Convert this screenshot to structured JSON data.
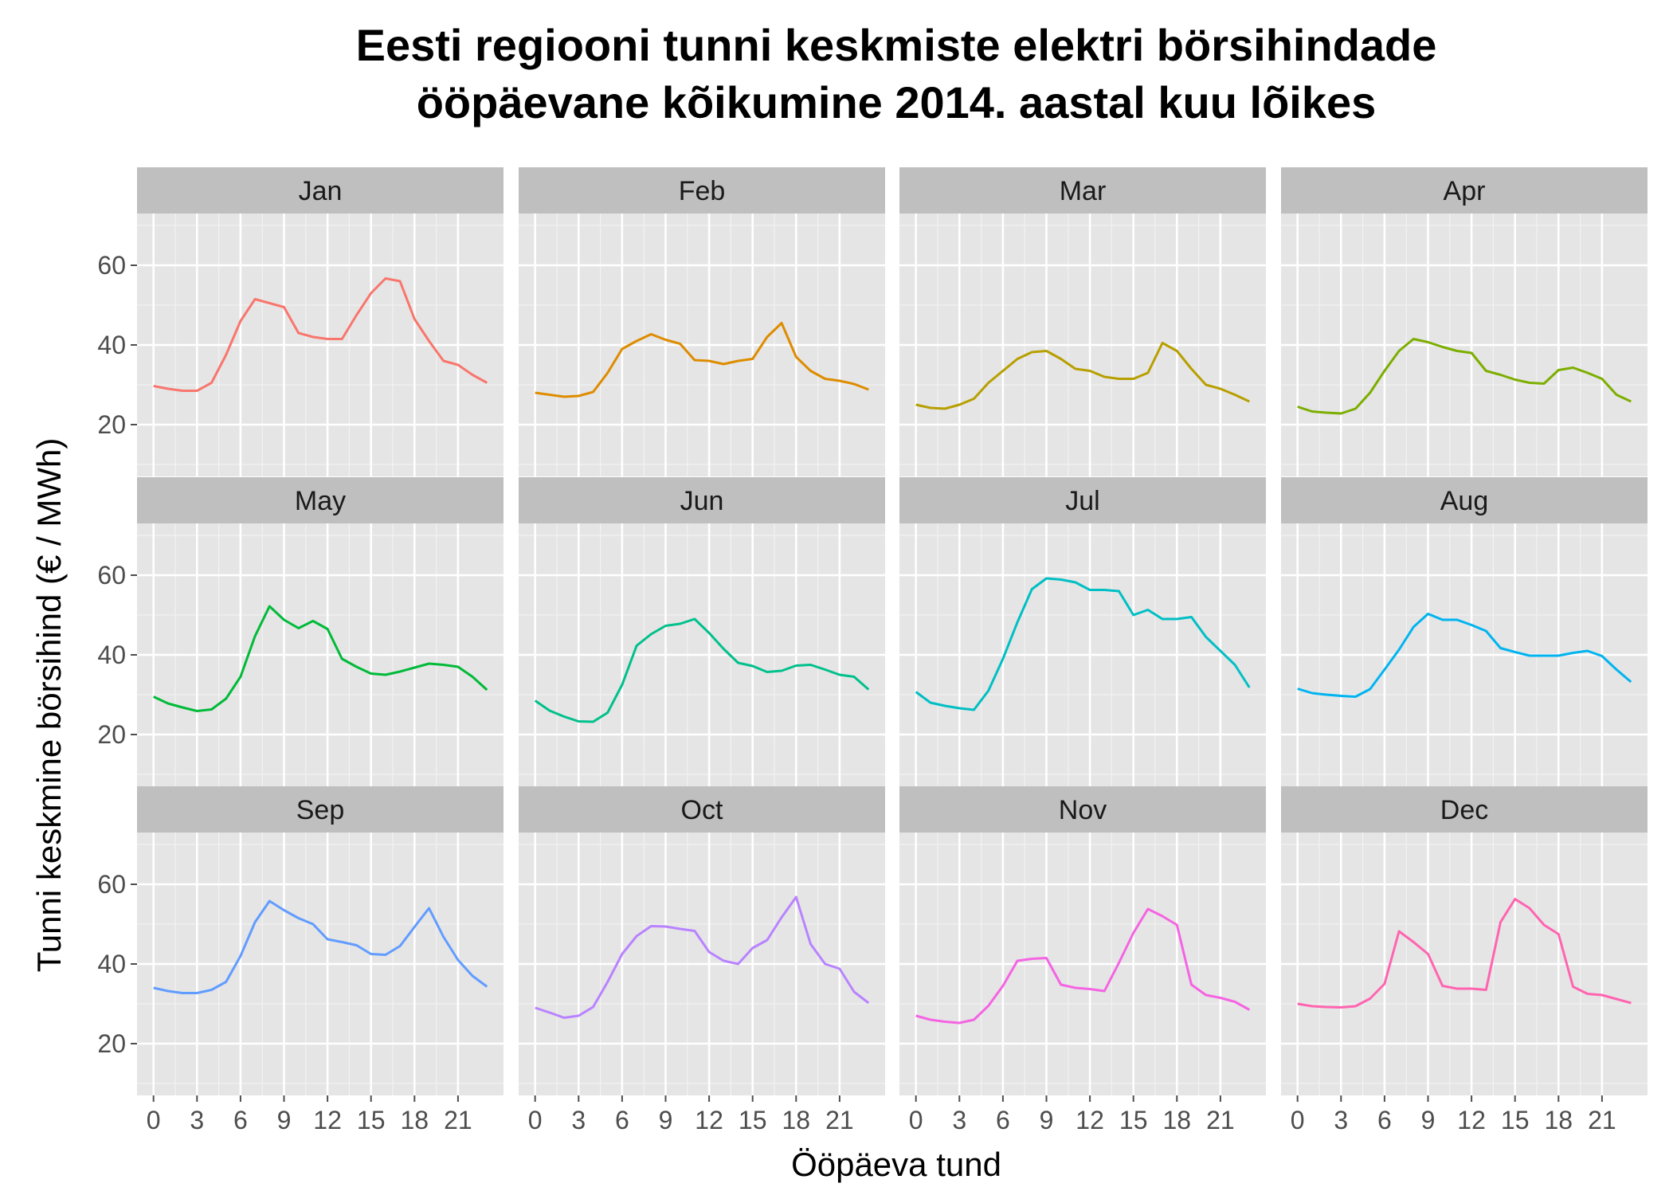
{
  "chart_data": {
    "type": "line",
    "title_line1": "Eesti regiooni tunni keskmiste elektri börsihindade",
    "title_line2": "ööpäevane kõikumine 2014. aastal kuu lõikes",
    "xlabel": "Ööpäeva tund",
    "ylabel": "Tunni keskmine börsihind (€ / MWh)",
    "xlim": [
      0,
      23
    ],
    "ylim": [
      7,
      73
    ],
    "xticks": [
      0,
      3,
      6,
      9,
      12,
      15,
      18,
      21
    ],
    "yticks": [
      20,
      40,
      60
    ],
    "grid": true,
    "x": [
      0,
      1,
      2,
      3,
      4,
      5,
      6,
      7,
      8,
      9,
      10,
      11,
      12,
      13,
      14,
      15,
      16,
      17,
      18,
      19,
      20,
      21,
      22,
      23
    ],
    "series": [
      {
        "name": "Jan",
        "color": "#F8766D",
        "values": [
          29.7,
          29,
          28.5,
          28.5,
          30.5,
          37.5,
          46,
          51.5,
          50.5,
          49.5,
          43,
          42,
          41.5,
          41.5,
          47.5,
          53,
          56.7,
          56,
          46.5,
          41,
          36,
          35,
          32.5,
          30.5
        ]
      },
      {
        "name": "Feb",
        "color": "#DE8C00",
        "values": [
          28,
          27.5,
          27,
          27.2,
          28.2,
          33,
          39,
          41,
          42.7,
          41.3,
          40.3,
          36.2,
          36,
          35.2,
          36,
          36.5,
          42,
          45.5,
          37,
          33.5,
          31.5,
          31,
          30.2,
          28.8
        ]
      },
      {
        "name": "Mar",
        "color": "#B79F00",
        "values": [
          25,
          24.2,
          24,
          25,
          26.5,
          30.5,
          33.5,
          36.5,
          38.2,
          38.5,
          36.5,
          34,
          33.5,
          32,
          31.5,
          31.5,
          33,
          40.5,
          38.5,
          34,
          30,
          29,
          27.5,
          25.8
        ]
      },
      {
        "name": "Apr",
        "color": "#7CAE00",
        "values": [
          24.5,
          23.3,
          23,
          22.8,
          24,
          28,
          33.5,
          38.5,
          41.5,
          40.7,
          39.5,
          38.5,
          38,
          33.5,
          32.5,
          31.3,
          30.5,
          30.3,
          33.7,
          34.3,
          33,
          31.5,
          27.5,
          25.8
        ]
      },
      {
        "name": "May",
        "color": "#00BA38",
        "values": [
          29.5,
          27.8,
          26.8,
          25.9,
          26.3,
          29,
          34.5,
          44.7,
          52.2,
          48.8,
          46.7,
          48.5,
          46.5,
          39,
          37,
          35.3,
          35,
          35.8,
          36.8,
          37.8,
          37.5,
          37,
          34.5,
          31.2
        ]
      },
      {
        "name": "Jun",
        "color": "#00C08B",
        "values": [
          28.5,
          26,
          24.5,
          23.3,
          23.2,
          25.5,
          32.5,
          42.3,
          45.2,
          47.3,
          47.8,
          49,
          45.5,
          41.5,
          38,
          37.2,
          35.7,
          36,
          37.3,
          37.5,
          36.3,
          35,
          34.5,
          31.3
        ]
      },
      {
        "name": "Jul",
        "color": "#00BFC4",
        "values": [
          30.7,
          28,
          27.2,
          26.6,
          26.2,
          31,
          39,
          48.2,
          56.5,
          59.2,
          58.9,
          58.2,
          56.3,
          56.3,
          56,
          50,
          51.3,
          49,
          49,
          49.5,
          44.5,
          41,
          37.5,
          31.8
        ]
      },
      {
        "name": "Aug",
        "color": "#00B4F0",
        "values": [
          31.5,
          30.4,
          30,
          29.7,
          29.5,
          31.4,
          36.3,
          41.3,
          47,
          50.3,
          48.8,
          48.8,
          47.5,
          46,
          41.7,
          40.7,
          39.8,
          39.8,
          39.8,
          40.5,
          41,
          39.7,
          36.3,
          33.2
        ]
      },
      {
        "name": "Sep",
        "color": "#619CFF",
        "values": [
          34,
          33.2,
          32.7,
          32.7,
          33.5,
          35.5,
          42,
          50.5,
          55.8,
          53.5,
          51.5,
          50,
          46.2,
          45.5,
          44.7,
          42.5,
          42.3,
          44.5,
          49.3,
          54,
          46.8,
          41,
          37,
          34.3
        ]
      },
      {
        "name": "Oct",
        "color": "#B983FF",
        "values": [
          29,
          27.8,
          26.5,
          27,
          29.2,
          35.5,
          42.5,
          47,
          49.5,
          49.4,
          48.8,
          48.3,
          43,
          40.8,
          40,
          44,
          46,
          51.7,
          56.8,
          45,
          40,
          38.8,
          33,
          30.2
        ]
      },
      {
        "name": "Nov",
        "color": "#F564E3",
        "values": [
          27,
          26,
          25.5,
          25.2,
          26,
          29.5,
          34.5,
          40.8,
          41.3,
          41.5,
          34.8,
          34,
          33.7,
          33.2,
          40.3,
          47.8,
          53.8,
          52,
          49.8,
          34.8,
          32.2,
          31.5,
          30.5,
          28.5
        ]
      },
      {
        "name": "Dec",
        "color": "#FF64B0",
        "values": [
          30,
          29.4,
          29.2,
          29.1,
          29.4,
          31.3,
          35,
          48.2,
          45.5,
          42.5,
          34.5,
          33.8,
          33.8,
          33.5,
          50.5,
          56.3,
          54,
          49.8,
          47.5,
          34.3,
          32.5,
          32.2,
          31.2,
          30.2
        ]
      }
    ]
  }
}
